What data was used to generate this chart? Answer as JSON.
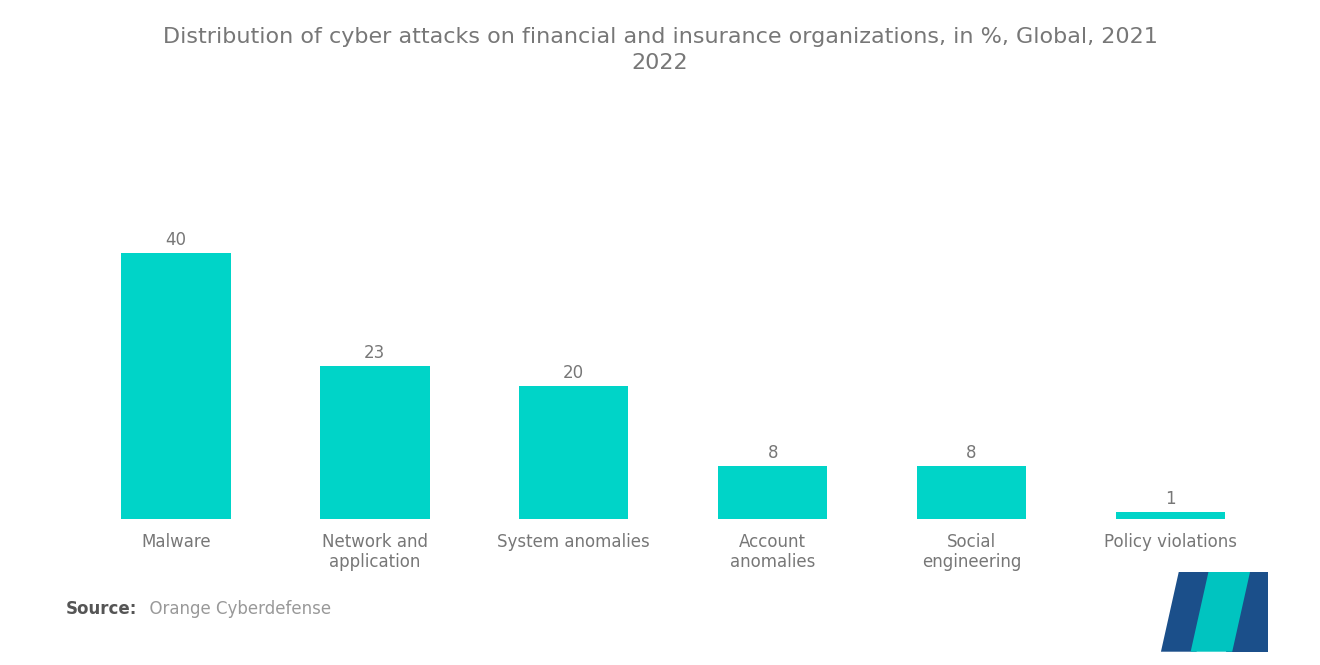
{
  "title": "Distribution of cyber attacks on financial and insurance organizations, in %, Global, 2021\n2022",
  "categories": [
    "Malware",
    "Network and\napplication",
    "System anomalies",
    "Account\nanomalies",
    "Social\nengineering",
    "Policy violations"
  ],
  "values": [
    40,
    23,
    20,
    8,
    8,
    1
  ],
  "bar_color": "#00D4C8",
  "background_color": "#ffffff",
  "title_color": "#777777",
  "label_color": "#777777",
  "value_color": "#777777",
  "source_bold": "Source:",
  "source_normal": "  Orange Cyberdefense",
  "title_fontsize": 16,
  "label_fontsize": 12,
  "value_fontsize": 12,
  "source_fontsize": 12,
  "ylim": [
    0,
    50
  ],
  "bar_width": 0.55,
  "logo_dark": "#1B4F8A",
  "logo_teal": "#00C4C0"
}
